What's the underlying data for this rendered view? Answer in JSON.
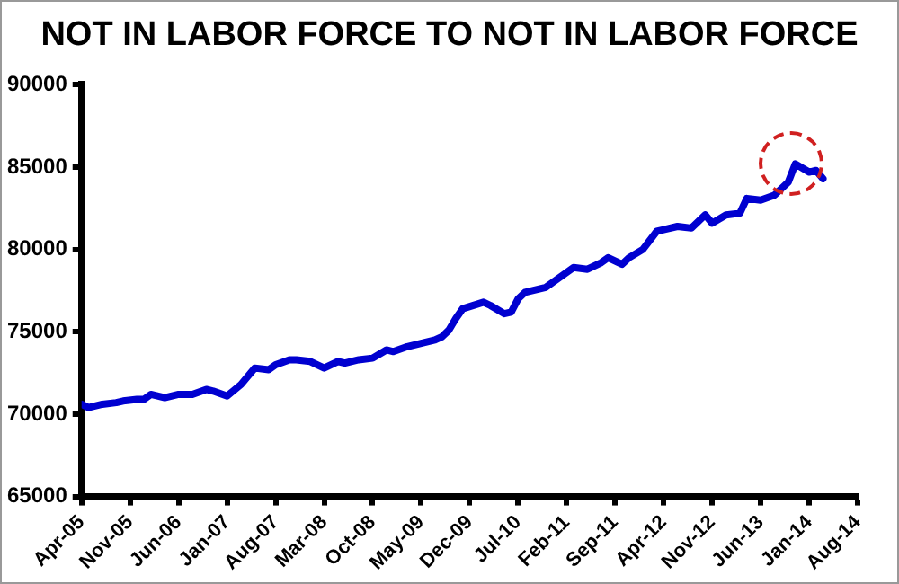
{
  "chart_data": {
    "type": "line",
    "title": "NOT IN LABOR FORCE TO NOT IN LABOR FORCE",
    "x": [
      "2005-04",
      "2005-05",
      "2005-07",
      "2005-09",
      "2005-10",
      "2005-12",
      "2006-01",
      "2006-02",
      "2006-04",
      "2006-06",
      "2006-08",
      "2006-10",
      "2006-11",
      "2007-01",
      "2007-03",
      "2007-05",
      "2007-07",
      "2007-08",
      "2007-10",
      "2007-11",
      "2008-01",
      "2008-03",
      "2008-05",
      "2008-06",
      "2008-08",
      "2008-10",
      "2008-12",
      "2009-01",
      "2009-03",
      "2009-05",
      "2009-07",
      "2009-08",
      "2009-09",
      "2009-10",
      "2009-11",
      "2010-02",
      "2010-03",
      "2010-05",
      "2010-06",
      "2010-07",
      "2010-08",
      "2010-11",
      "2011-01",
      "2011-03",
      "2011-05",
      "2011-07",
      "2011-08",
      "2011-10",
      "2011-11",
      "2012-01",
      "2012-03",
      "2012-04",
      "2012-06",
      "2012-08",
      "2012-10",
      "2012-11",
      "2013-01",
      "2013-03",
      "2013-04",
      "2013-06",
      "2013-08",
      "2013-10",
      "2013-11",
      "2014-01",
      "2014-02",
      "2014-03"
    ],
    "series": [
      {
        "color": "#0000d0",
        "values": [
          70600,
          70400,
          70600,
          70700,
          70800,
          70900,
          70900,
          71200,
          71000,
          71200,
          71200,
          71500,
          71400,
          71100,
          71800,
          72800,
          72700,
          73000,
          73300,
          73300,
          73200,
          72800,
          73200,
          73100,
          73300,
          73400,
          73900,
          73800,
          74100,
          74300,
          74500,
          74700,
          75100,
          75800,
          76400,
          76800,
          76600,
          76100,
          76200,
          77000,
          77400,
          77700,
          78300,
          78900,
          78800,
          79200,
          79500,
          79100,
          79500,
          80000,
          81100,
          81200,
          81400,
          81300,
          82100,
          81600,
          82100,
          82200,
          83100,
          83000,
          83300,
          84100,
          85200,
          84700,
          84800,
          84300
        ]
      }
    ],
    "xlim": [
      "2005-04",
      "2014-08"
    ],
    "xticks": [
      {
        "value": "2005-04",
        "label": "Apr-05"
      },
      {
        "value": "2005-11",
        "label": "Nov-05"
      },
      {
        "value": "2006-06",
        "label": "Jun-06"
      },
      {
        "value": "2007-01",
        "label": "Jan-07"
      },
      {
        "value": "2007-08",
        "label": "Aug-07"
      },
      {
        "value": "2008-03",
        "label": "Mar-08"
      },
      {
        "value": "2008-10",
        "label": "Oct-08"
      },
      {
        "value": "2009-05",
        "label": "May-09"
      },
      {
        "value": "2009-12",
        "label": "Dec-09"
      },
      {
        "value": "2010-07",
        "label": "Jul-10"
      },
      {
        "value": "2011-02",
        "label": "Feb-11"
      },
      {
        "value": "2011-09",
        "label": "Sep-11"
      },
      {
        "value": "2012-04",
        "label": "Apr-12"
      },
      {
        "value": "2012-11",
        "label": "Nov-12"
      },
      {
        "value": "2013-06",
        "label": "Jun-13"
      },
      {
        "value": "2014-01",
        "label": "Jan-14"
      },
      {
        "value": "2014-08",
        "label": "Aug-14"
      }
    ],
    "ylim": [
      65000,
      90000
    ],
    "yticks": [
      65000,
      70000,
      75000,
      80000,
      85000,
      90000
    ],
    "grid": false,
    "legend": false,
    "marker": "none",
    "line_style": "solid"
  }
}
